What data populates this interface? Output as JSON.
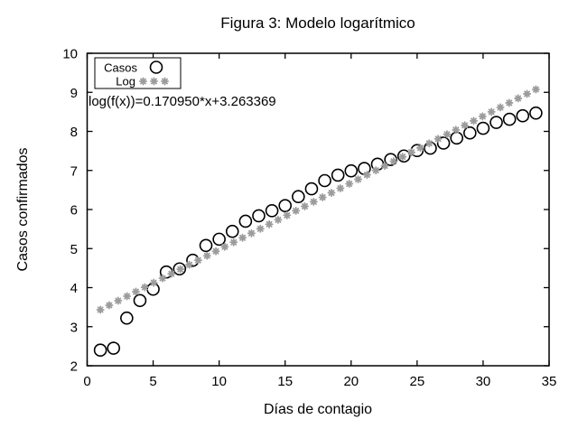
{
  "figure": {
    "title": "Figura 3: Modelo logarítmico",
    "xlabel": "Días de contagio",
    "ylabel": "Casos confirmados",
    "annotation": "log(f(x))=0.170950*x+3.263369"
  },
  "legend": {
    "position": "top-left",
    "items": [
      {
        "label": "Casos",
        "marker": "circle"
      },
      {
        "label": "Log",
        "marker": "asterisk"
      }
    ]
  },
  "colors": {
    "background": "#ffffff",
    "text": "#000000",
    "casos_marker": "#000000",
    "log_marker": "#9c9c9c",
    "border": "#000000"
  },
  "chart_data": {
    "type": "scatter",
    "title": "Figura 3: Modelo logarítmico",
    "xlabel": "Días de contagio",
    "ylabel": "Casos confirmados",
    "xlim": [
      0,
      35
    ],
    "ylim": [
      2,
      10
    ],
    "xticks": [
      0,
      5,
      10,
      15,
      20,
      25,
      30,
      35
    ],
    "yticks": [
      2,
      3,
      4,
      5,
      6,
      7,
      8,
      9,
      10
    ],
    "grid": false,
    "legend_position": "top-left",
    "series": [
      {
        "name": "Casos",
        "marker": "circle",
        "color": "#000000",
        "x": [
          1,
          2,
          3,
          4,
          5,
          6,
          7,
          8,
          9,
          10,
          11,
          12,
          13,
          14,
          15,
          16,
          17,
          18,
          19,
          20,
          21,
          22,
          23,
          24,
          25,
          26,
          27,
          28,
          29,
          30,
          31,
          32,
          33,
          34
        ],
        "y": [
          2.4,
          2.45,
          3.22,
          3.67,
          3.96,
          4.4,
          4.48,
          4.7,
          5.08,
          5.24,
          5.44,
          5.7,
          5.84,
          5.97,
          6.1,
          6.33,
          6.53,
          6.74,
          6.88,
          6.99,
          7.05,
          7.16,
          7.28,
          7.37,
          7.51,
          7.57,
          7.7,
          7.83,
          7.96,
          8.08,
          8.23,
          8.31,
          8.4,
          8.47
        ]
      },
      {
        "name": "Log",
        "marker": "asterisk",
        "color": "#9c9c9c",
        "fit": {
          "equation": "log(f(x))=0.170950*x+3.263369",
          "slope": 0.17095,
          "intercept": 3.263369,
          "x_start": 1,
          "x_end": 34,
          "samples": 50,
          "y_start": 3.434319,
          "y_end": 9.075669
        }
      }
    ]
  }
}
